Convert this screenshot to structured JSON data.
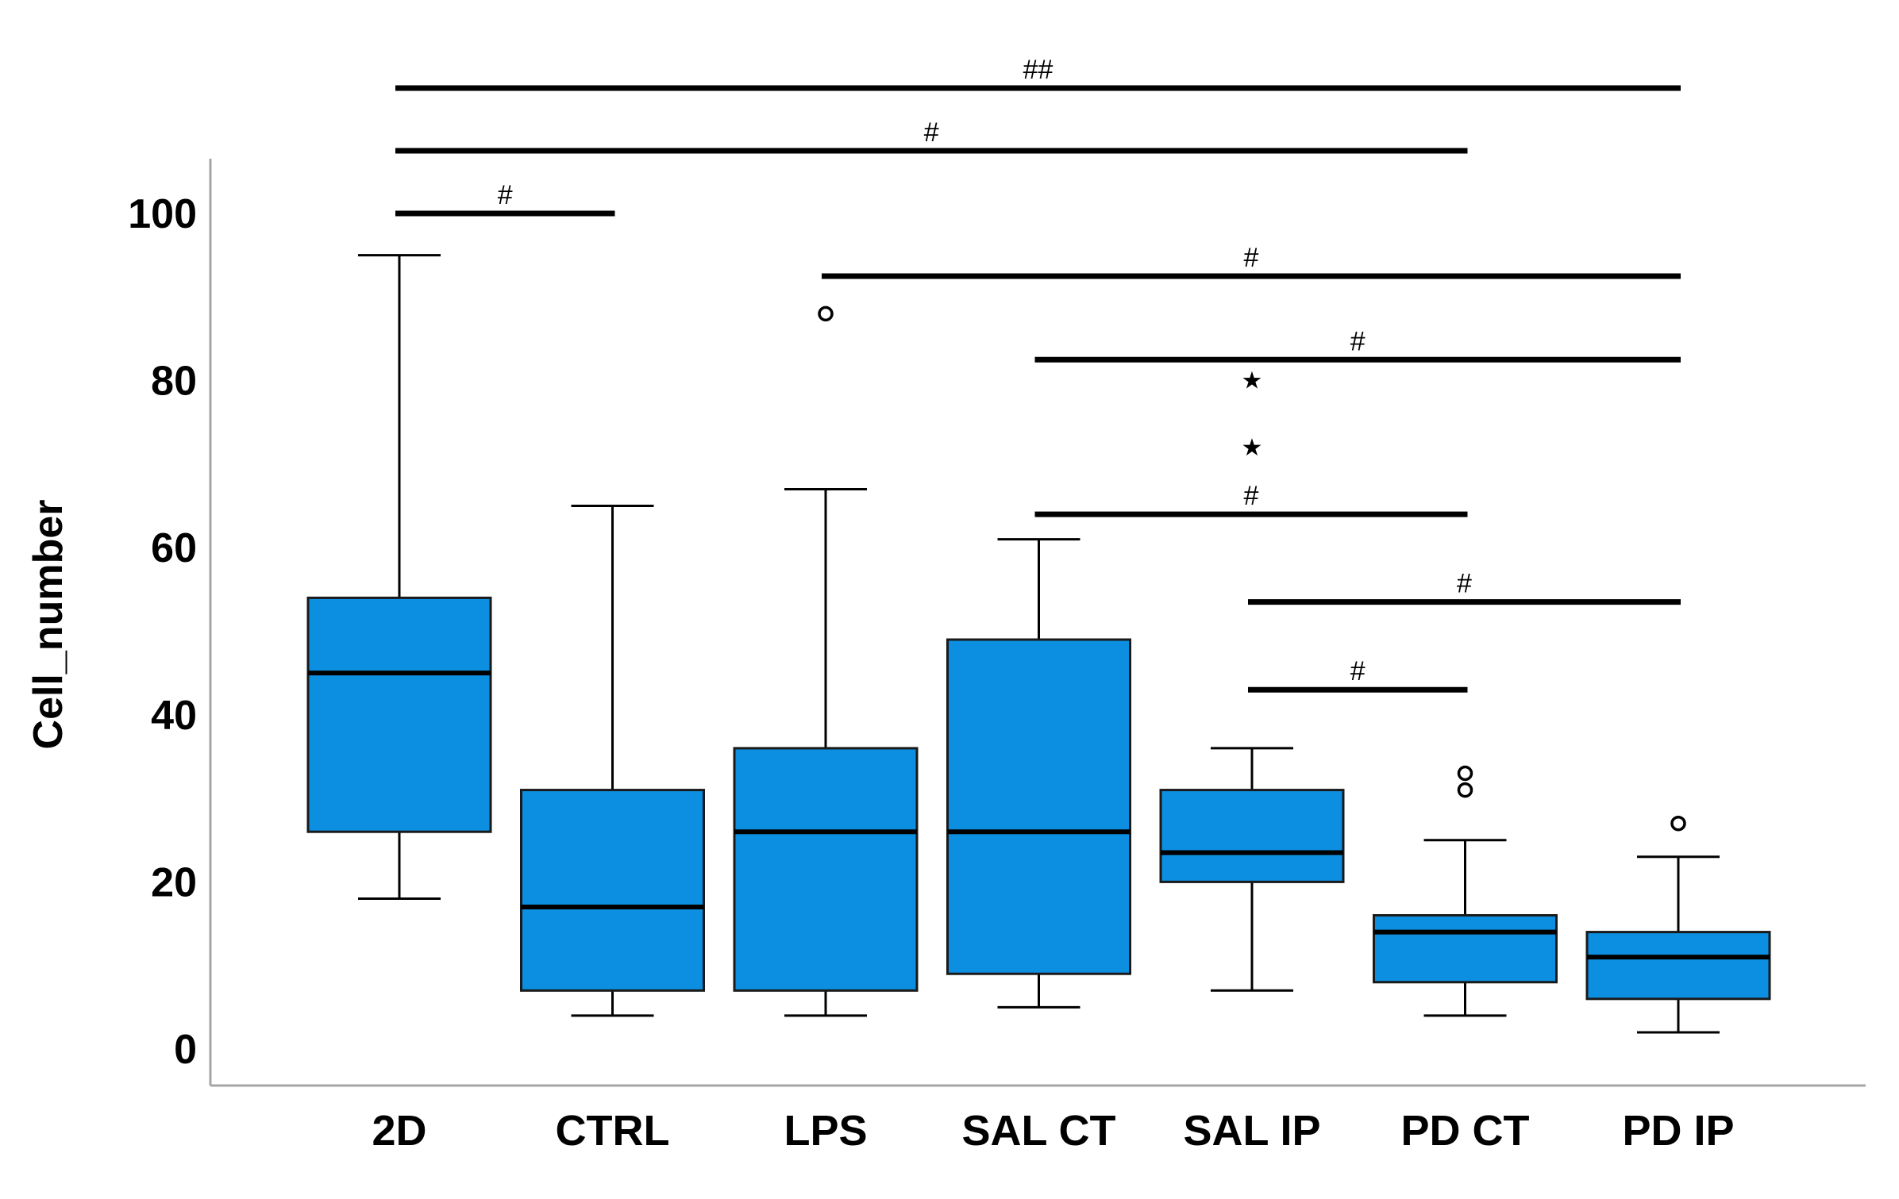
{
  "chart_data": {
    "type": "boxplot",
    "title": "",
    "xlabel": "",
    "ylabel": "Cell_number",
    "ylim": [
      0,
      105
    ],
    "yticks": [
      0,
      20,
      40,
      60,
      80,
      100
    ],
    "ytick_labels": [
      "0",
      "20",
      "40",
      "60",
      "80",
      "100"
    ],
    "grid": false,
    "colors": {
      "box": "#0c8fe0",
      "line": "#000000",
      "axis": "#a6a6a6"
    },
    "categories": [
      "2D",
      "CTRL",
      "LPS",
      "SAL CT",
      "SAL IP",
      "PD CT",
      "PD IP"
    ],
    "boxes": [
      {
        "label": "2D",
        "whisker_low": 18,
        "q1": 26,
        "median": 45,
        "q3": 54,
        "whisker_high": 95,
        "outliers": [],
        "extremes": []
      },
      {
        "label": "CTRL",
        "whisker_low": 4,
        "q1": 7,
        "median": 17,
        "q3": 31,
        "whisker_high": 65,
        "outliers": [],
        "extremes": []
      },
      {
        "label": "LPS",
        "whisker_low": 4,
        "q1": 7,
        "median": 26,
        "q3": 36,
        "whisker_high": 67,
        "outliers": [
          88
        ],
        "extremes": []
      },
      {
        "label": "SAL CT",
        "whisker_low": 5,
        "q1": 9,
        "median": 26,
        "q3": 49,
        "whisker_high": 61,
        "outliers": [],
        "extremes": []
      },
      {
        "label": "SAL IP",
        "whisker_low": 7,
        "q1": 20,
        "median": 23.5,
        "q3": 31,
        "whisker_high": 36,
        "outliers": [],
        "extremes": [
          72,
          80
        ]
      },
      {
        "label": "PD CT",
        "whisker_low": 4,
        "q1": 8,
        "median": 14,
        "q3": 16,
        "whisker_high": 25,
        "outliers": [
          31,
          33
        ],
        "extremes": []
      },
      {
        "label": "PD IP",
        "whisker_low": 2,
        "q1": 6,
        "median": 11,
        "q3": 14,
        "whisker_high": 23,
        "outliers": [
          27
        ],
        "extremes": []
      }
    ],
    "significance": [
      {
        "from": "2D",
        "to": "PD IP",
        "label": "##",
        "y": 115
      },
      {
        "from": "2D",
        "to": "PD CT",
        "label": "#",
        "y": 107.5
      },
      {
        "from": "2D",
        "to": "CTRL",
        "label": "#",
        "y": 100
      },
      {
        "from": "LPS",
        "to": "PD IP",
        "label": "#",
        "y": 92.5
      },
      {
        "from": "SAL CT",
        "to": "PD IP",
        "label": "#",
        "y": 82.5
      },
      {
        "from": "SAL CT",
        "to": "PD CT",
        "label": "#",
        "y": 64
      },
      {
        "from": "SAL IP",
        "to": "PD IP",
        "label": "#",
        "y": 53.5
      },
      {
        "from": "SAL IP",
        "to": "PD CT",
        "label": "#",
        "y": 43
      }
    ]
  }
}
